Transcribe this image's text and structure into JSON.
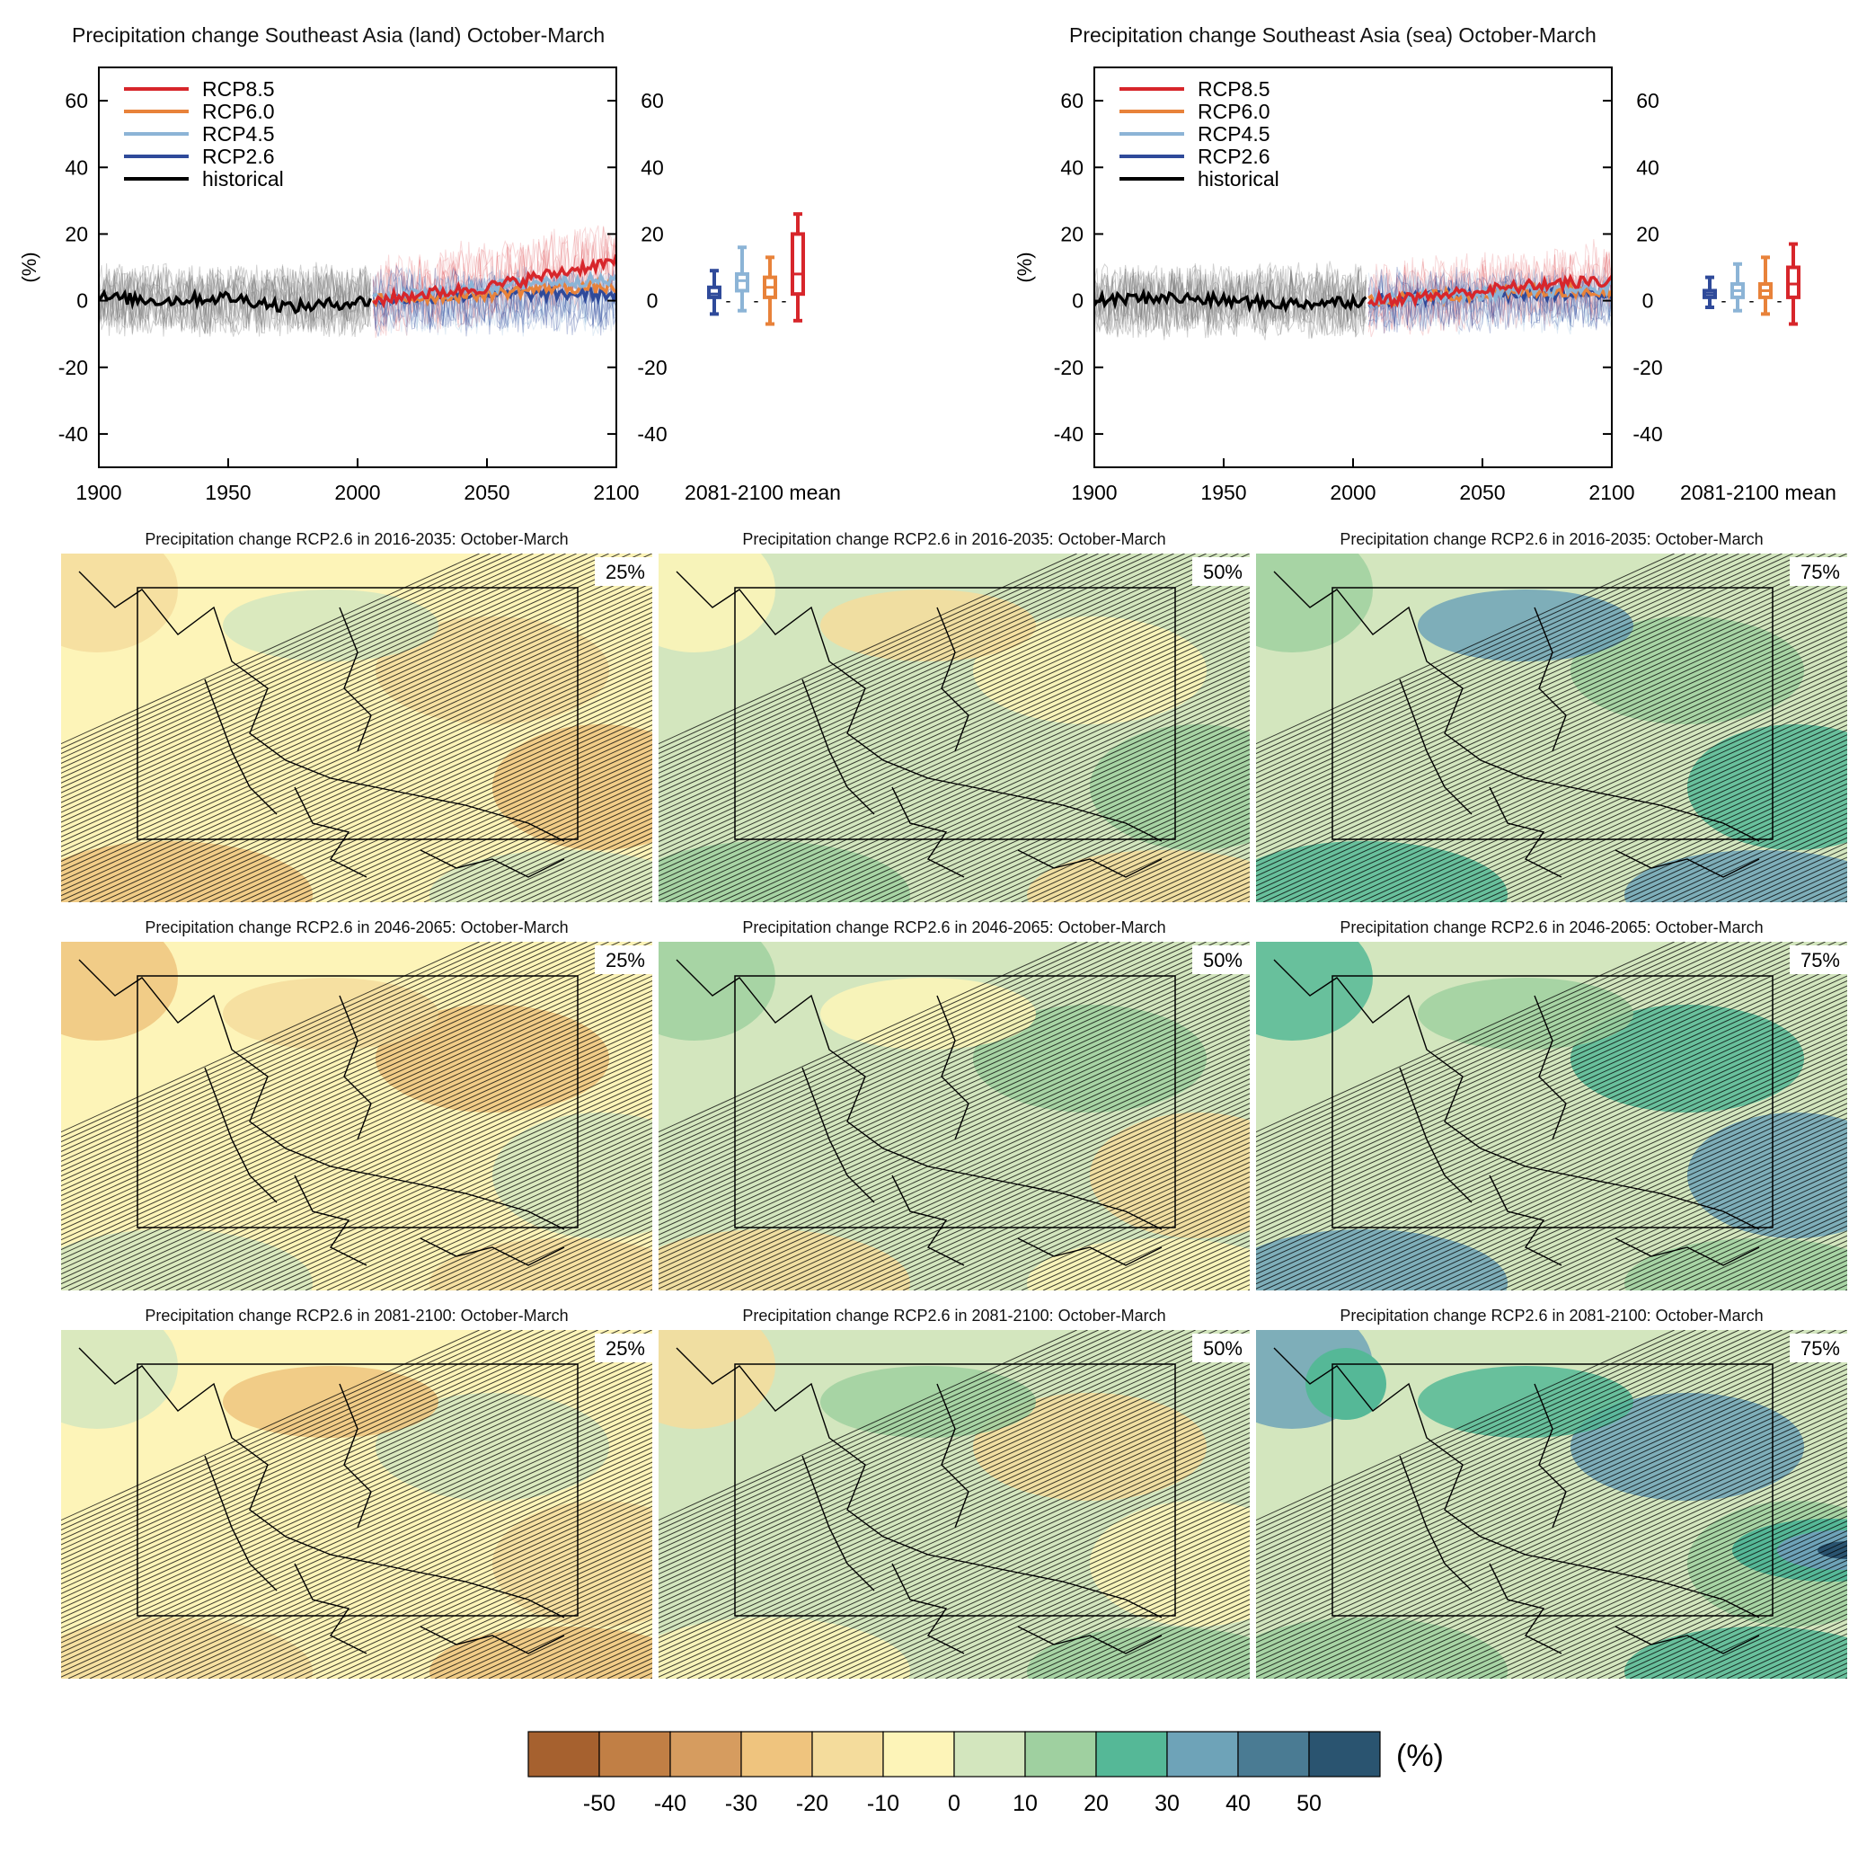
{
  "timeseries": [
    {
      "title": "Precipitation change Southeast Asia (land) October-March"
    },
    {
      "title": "Precipitation change Southeast Asia (sea) October-March"
    }
  ],
  "maps": {
    "rows": [
      {
        "title": "Precipitation change RCP2.6 in 2016-2035: October-March"
      },
      {
        "title": "Precipitation change RCP2.6 in 2046-2065: October-March"
      },
      {
        "title": "Precipitation change RCP2.6 in 2081-2100: October-March"
      }
    ],
    "percentiles": [
      "25%",
      "50%",
      "75%"
    ]
  },
  "colorbar": {
    "unit": "(%)",
    "ticks": [
      "-50",
      "-40",
      "-30",
      "-20",
      "-10",
      "0",
      "10",
      "20",
      "30",
      "40",
      "50"
    ],
    "colors": [
      "#a6612f",
      "#c17f45",
      "#d69c5f",
      "#efc47e",
      "#f4dc9c",
      "#fdf4b8",
      "#d3e6be",
      "#9fd0a0",
      "#55b897",
      "#6ea3b8",
      "#4a7b93",
      "#2a5470"
    ]
  },
  "chart_data": [
    {
      "type": "line",
      "title": "Precipitation change Southeast Asia (land) October-March",
      "ylabel": "(%)",
      "xlim": [
        1900,
        2100
      ],
      "ylim": [
        -50,
        70
      ],
      "x_ticks": [
        "1900",
        "1950",
        "2000",
        "2050",
        "2100"
      ],
      "y_ticks": [
        "60",
        "40",
        "20",
        "0",
        "-20",
        "-40"
      ],
      "legend": [
        "RCP8.5",
        "RCP6.0",
        "RCP4.5",
        "RCP2.6",
        "historical"
      ],
      "legend_position": "top-left",
      "series_colors": {
        "RCP8.5": "#d7262b",
        "RCP6.0": "#e8823a",
        "RCP4.5": "#8cb4d6",
        "RCP2.6": "#2f4a9a",
        "historical": "#000000"
      },
      "series": [
        {
          "name": "historical",
          "x": [
            1900,
            1925,
            1950,
            1975,
            2005
          ],
          "values": [
            1,
            0,
            1,
            -2,
            0
          ]
        },
        {
          "name": "RCP2.6",
          "x": [
            2006,
            2025,
            2050,
            2075,
            2100
          ],
          "values": [
            0,
            1,
            2,
            2,
            2
          ]
        },
        {
          "name": "RCP4.5",
          "x": [
            2006,
            2025,
            2050,
            2075,
            2100
          ],
          "values": [
            0,
            2,
            4,
            6,
            6
          ]
        },
        {
          "name": "RCP6.0",
          "x": [
            2006,
            2025,
            2050,
            2075,
            2100
          ],
          "values": [
            0,
            1,
            2,
            4,
            4
          ]
        },
        {
          "name": "RCP8.5",
          "x": [
            2006,
            2025,
            2050,
            2075,
            2100
          ],
          "values": [
            0,
            2,
            4,
            8,
            12
          ]
        }
      ],
      "box_label": "2081-2100 mean",
      "boxes": [
        {
          "name": "RCP2.6",
          "min": -4,
          "q1": 1,
          "median": 2,
          "q3": 4,
          "max": 9
        },
        {
          "name": "RCP4.5",
          "min": -3,
          "q1": 3,
          "median": 6,
          "q3": 8,
          "max": 16
        },
        {
          "name": "RCP6.0",
          "min": -7,
          "q1": 1,
          "median": 4,
          "q3": 7,
          "max": 13
        },
        {
          "name": "RCP8.5",
          "min": -6,
          "q1": 2,
          "median": 8,
          "q3": 20,
          "max": 26
        }
      ]
    },
    {
      "type": "line",
      "title": "Precipitation change Southeast Asia (sea) October-March",
      "ylabel": "(%)",
      "xlim": [
        1900,
        2100
      ],
      "ylim": [
        -50,
        70
      ],
      "x_ticks": [
        "1900",
        "1950",
        "2000",
        "2050",
        "2100"
      ],
      "y_ticks": [
        "60",
        "40",
        "20",
        "0",
        "-20",
        "-40"
      ],
      "legend": [
        "RCP8.5",
        "RCP6.0",
        "RCP4.5",
        "RCP2.6",
        "historical"
      ],
      "legend_position": "top-left",
      "series_colors": {
        "RCP8.5": "#d7262b",
        "RCP6.0": "#e8823a",
        "RCP4.5": "#8cb4d6",
        "RCP2.6": "#2f4a9a",
        "historical": "#000000"
      },
      "series": [
        {
          "name": "historical",
          "x": [
            1900,
            1925,
            1950,
            1975,
            2005
          ],
          "values": [
            0,
            1,
            0,
            -1,
            0
          ]
        },
        {
          "name": "RCP2.6",
          "x": [
            2006,
            2025,
            2050,
            2075,
            2100
          ],
          "values": [
            0,
            1,
            2,
            2,
            2
          ]
        },
        {
          "name": "RCP4.5",
          "x": [
            2006,
            2025,
            2050,
            2075,
            2100
          ],
          "values": [
            0,
            1,
            2,
            3,
            4
          ]
        },
        {
          "name": "RCP6.0",
          "x": [
            2006,
            2025,
            2050,
            2075,
            2100
          ],
          "values": [
            0,
            1,
            2,
            3,
            3
          ]
        },
        {
          "name": "RCP8.5",
          "x": [
            2006,
            2025,
            2050,
            2075,
            2100
          ],
          "values": [
            0,
            1,
            3,
            5,
            6
          ]
        }
      ],
      "box_label": "2081-2100 mean",
      "boxes": [
        {
          "name": "RCP2.6",
          "min": -2,
          "q1": 1,
          "median": 2,
          "q3": 3,
          "max": 7
        },
        {
          "name": "RCP4.5",
          "min": -3,
          "q1": 1,
          "median": 3,
          "q3": 5,
          "max": 11
        },
        {
          "name": "RCP6.0",
          "min": -4,
          "q1": 1,
          "median": 3,
          "q3": 5,
          "max": 13
        },
        {
          "name": "RCP8.5",
          "min": -7,
          "q1": 1,
          "median": 5,
          "q3": 10,
          "max": 17
        }
      ]
    }
  ]
}
